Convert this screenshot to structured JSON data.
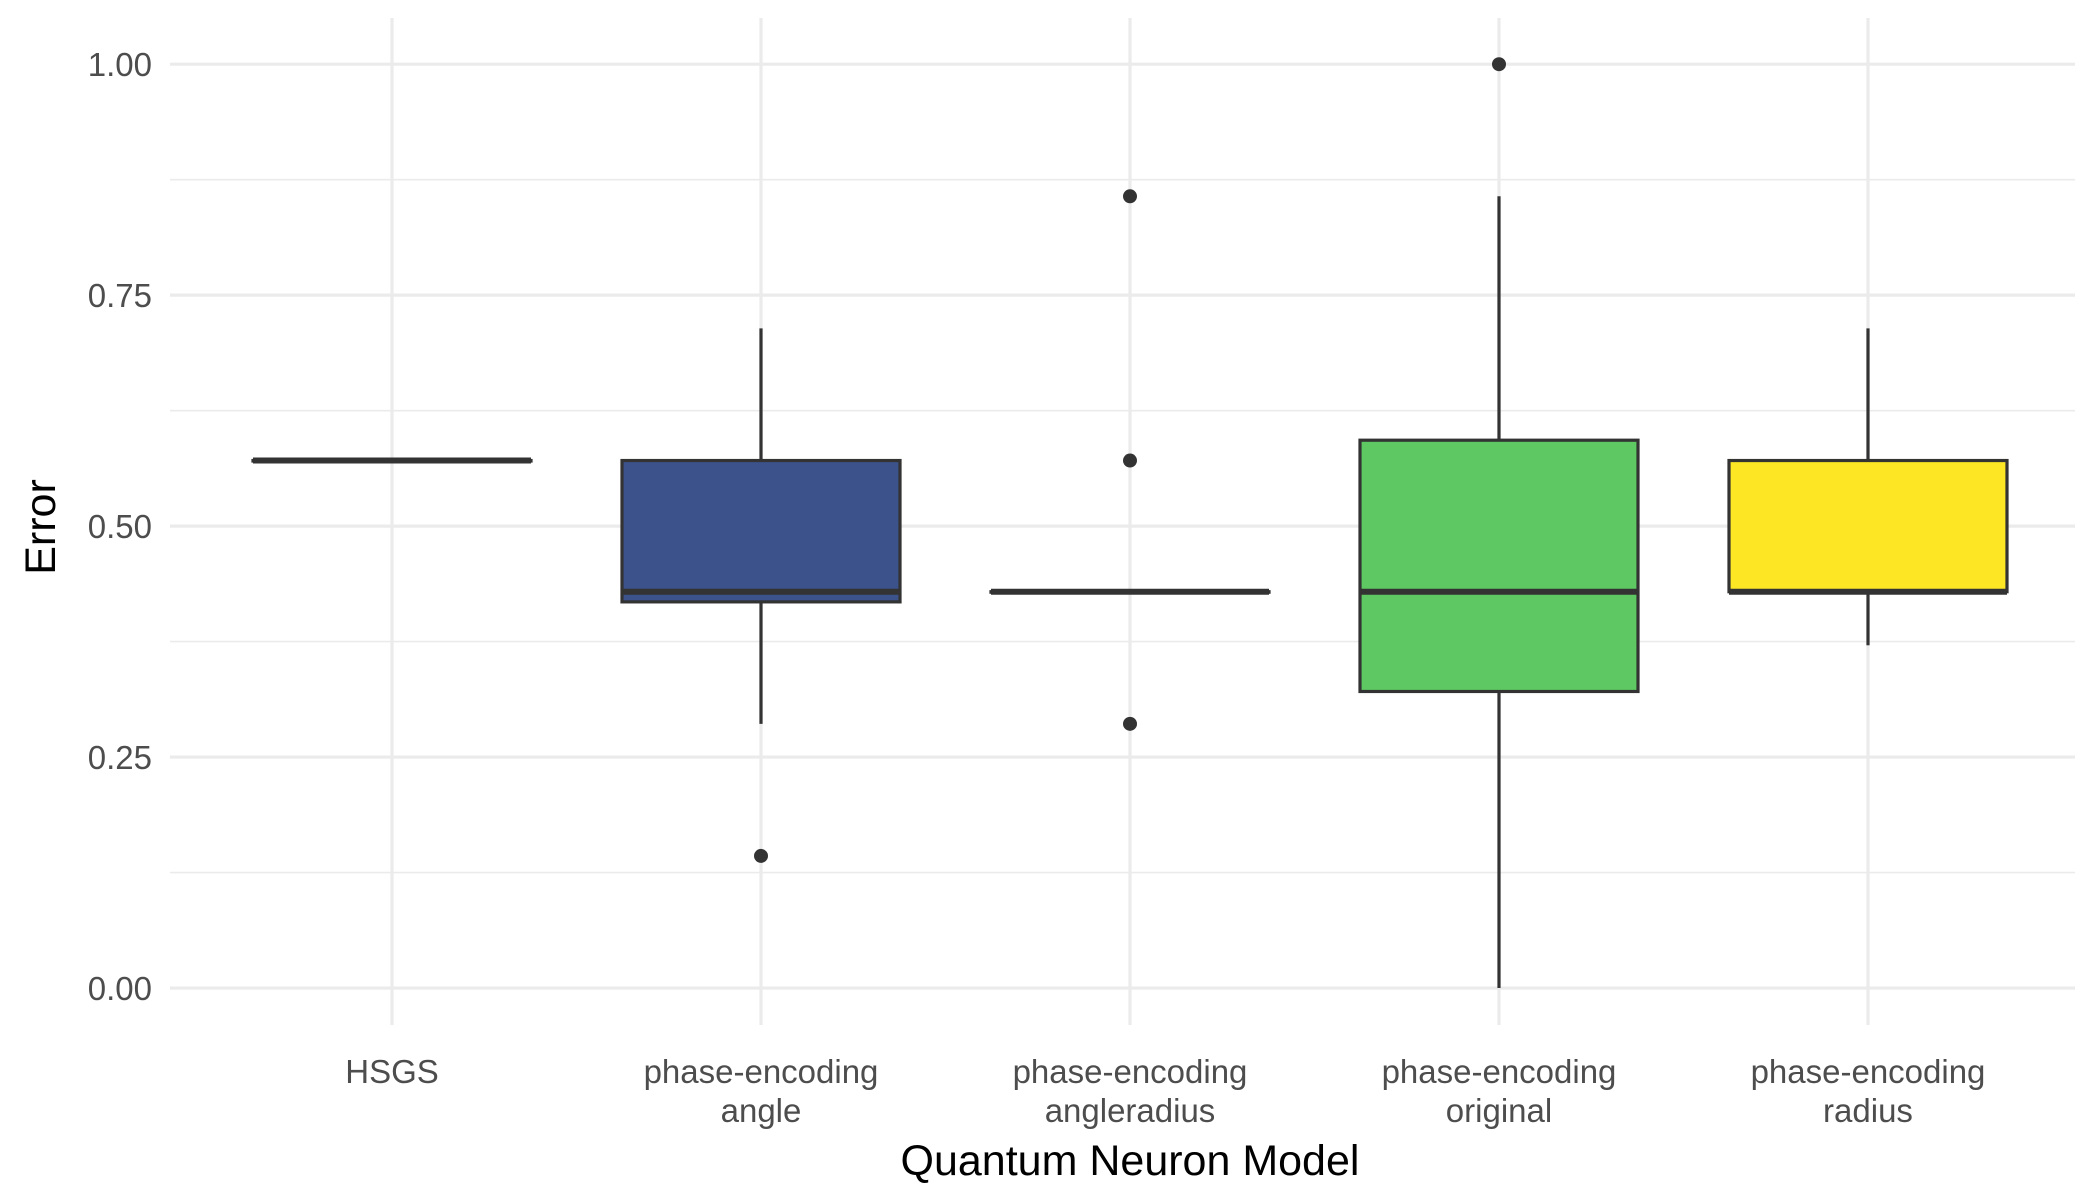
{
  "chart_data": {
    "type": "boxplot",
    "xlabel": "Quantum Neuron Model",
    "ylabel": "Error",
    "ylim": [
      -0.04,
      1.05
    ],
    "yticks": [
      "0.00",
      "0.25",
      "0.50",
      "0.75",
      "1.00"
    ],
    "grid": true,
    "categories": [
      {
        "line1": "HSGS",
        "line2": ""
      },
      {
        "line1": "phase-encoding",
        "line2": "angle"
      },
      {
        "line1": "phase-encoding",
        "line2": "angleradius"
      },
      {
        "line1": "phase-encoding",
        "line2": "original"
      },
      {
        "line1": "phase-encoding",
        "line2": "radius"
      }
    ],
    "boxes": [
      {
        "fill": "#440154",
        "low": 0.571,
        "q1": 0.571,
        "median": 0.571,
        "q3": 0.571,
        "high": 0.571,
        "outliers": []
      },
      {
        "fill": "#3b528b",
        "low": 0.286,
        "q1": 0.418,
        "median": 0.429,
        "q3": 0.571,
        "high": 0.714,
        "outliers": [
          0.143
        ]
      },
      {
        "fill": "#21908c",
        "low": 0.429,
        "q1": 0.429,
        "median": 0.429,
        "q3": 0.429,
        "high": 0.429,
        "outliers": [
          0.286,
          0.571,
          0.857
        ]
      },
      {
        "fill": "#5ec962",
        "low": 0.0,
        "q1": 0.321,
        "median": 0.429,
        "q3": 0.593,
        "high": 0.857,
        "outliers": [
          1.0
        ]
      },
      {
        "fill": "#fde725",
        "low": 0.371,
        "q1": 0.429,
        "median": 0.429,
        "q3": 0.571,
        "high": 0.714,
        "outliers": []
      }
    ]
  }
}
